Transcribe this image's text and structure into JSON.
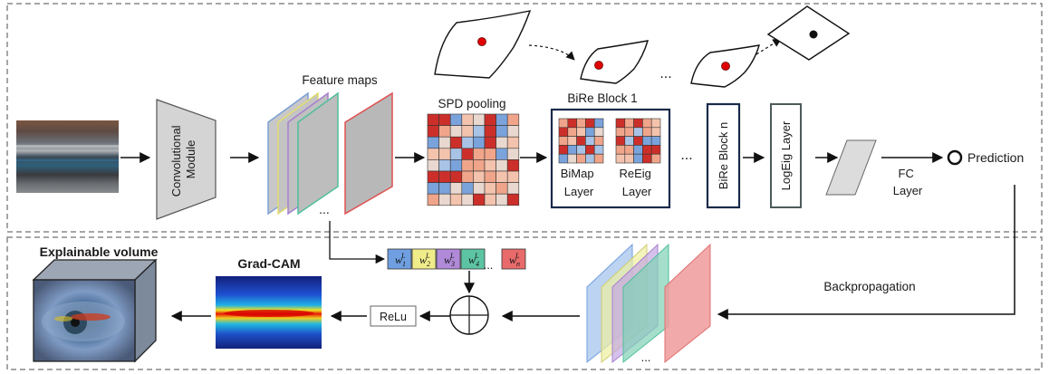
{
  "labels": {
    "convolutional_module": [
      "Convolutional",
      "Module"
    ],
    "feature_maps": "Feature maps",
    "spd_pooling": "SPD pooling",
    "bire_block_1": "BiRe Block 1",
    "bimap_layer": [
      "BiMap",
      "Layer"
    ],
    "reeig_layer": [
      "ReEig",
      "Layer"
    ],
    "bire_block_n": "BiRe Block n",
    "logeig_layer": "LogEig Layer",
    "fc_layer": [
      "FC",
      "Layer"
    ],
    "prediction": "Prediction",
    "backpropagation": "Backpropagation",
    "relu": "ReLu",
    "grad_cam": "Grad-CAM",
    "explainable_volume": "Explainable volume",
    "ellipsis": "...",
    "weights": [
      "w",
      "w",
      "w",
      "w",
      "w"
    ],
    "weight_subs": [
      "1",
      "2",
      "3",
      "4",
      "n"
    ],
    "weight_sup": "L"
  },
  "colors": {
    "fm_blue": "#7b9fd6",
    "fm_yellow": "#e3dc6e",
    "fm_purple": "#a77fcf",
    "fm_green": "#4fbf9c",
    "fm_red": "#e05050",
    "w_blue": "#6f9fe0",
    "w_yellow": "#f0ec8a",
    "w_purple": "#b08ad8",
    "w_green": "#5cc4a3",
    "w_red": "#e86a6a"
  }
}
